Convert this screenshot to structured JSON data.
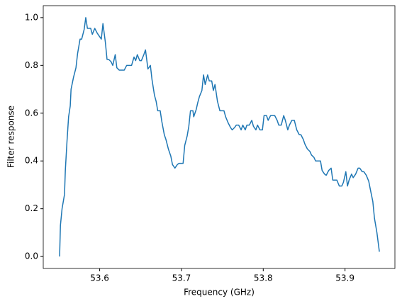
{
  "chart_data": {
    "type": "line",
    "xlabel": "Frequency (GHz)",
    "ylabel": "Filter response",
    "xlim": [
      53.531,
      53.961
    ],
    "ylim": [
      -0.05,
      1.05
    ],
    "xticks": [
      53.6,
      53.7,
      53.8,
      53.9
    ],
    "yticks": [
      {
        "value": 0,
        "label": "0.0"
      },
      0.2,
      0.4,
      0.6,
      0.8,
      {
        "value": 1,
        "label": "1.0"
      }
    ],
    "grid": false,
    "series": [
      {
        "color": "#1f77b4",
        "x": [
          53.551,
          53.552,
          53.554,
          53.557,
          53.558,
          53.56,
          53.562,
          53.564,
          53.565,
          53.568,
          53.571,
          53.573,
          53.576,
          53.578,
          53.581,
          53.583,
          53.585,
          53.589,
          53.591,
          53.594,
          53.597,
          53.599,
          53.602,
          53.604,
          53.607,
          53.609,
          53.611,
          53.614,
          53.616,
          53.619,
          53.621,
          53.624,
          53.627,
          53.63,
          53.633,
          53.636,
          53.639,
          53.642,
          53.644,
          53.646,
          53.649,
          53.651,
          53.654,
          53.656,
          53.659,
          53.662,
          53.664,
          53.667,
          53.669,
          53.671,
          53.674,
          53.676,
          53.679,
          53.681,
          53.684,
          53.687,
          53.689,
          53.692,
          53.695,
          53.697,
          53.7,
          53.702,
          53.704,
          53.707,
          53.709,
          53.711,
          53.714,
          53.715,
          53.718,
          53.72,
          53.722,
          53.725,
          53.727,
          53.729,
          53.732,
          53.734,
          53.737,
          53.739,
          53.741,
          53.744,
          53.747,
          53.749,
          53.752,
          53.754,
          53.757,
          53.76,
          53.762,
          53.765,
          53.767,
          53.77,
          53.773,
          53.775,
          53.778,
          53.78,
          53.783,
          53.786,
          53.788,
          53.791,
          53.793,
          53.796,
          53.799,
          53.801,
          53.804,
          53.806,
          53.809,
          53.812,
          53.814,
          53.817,
          53.819,
          53.822,
          53.825,
          53.827,
          53.83,
          53.832,
          53.835,
          53.838,
          53.841,
          53.844,
          53.846,
          53.849,
          53.851,
          53.854,
          53.857,
          53.859,
          53.862,
          53.864,
          53.867,
          53.87,
          53.872,
          53.875,
          53.877,
          53.88,
          53.883,
          53.885,
          53.888,
          53.89,
          53.893,
          53.896,
          53.898,
          53.901,
          53.903,
          53.905,
          53.908,
          53.91,
          53.913,
          53.916,
          53.918,
          53.921,
          53.923,
          53.926,
          53.929,
          53.931,
          53.934,
          53.936,
          53.939,
          53.942
        ],
        "values": [
          0.0,
          0.13,
          0.2,
          0.26,
          0.36,
          0.48,
          0.585,
          0.63,
          0.7,
          0.75,
          0.79,
          0.85,
          0.91,
          0.91,
          0.95,
          1.0,
          0.955,
          0.955,
          0.93,
          0.955,
          0.935,
          0.925,
          0.91,
          0.975,
          0.895,
          0.825,
          0.825,
          0.815,
          0.8,
          0.845,
          0.79,
          0.78,
          0.78,
          0.78,
          0.8,
          0.8,
          0.8,
          0.835,
          0.82,
          0.845,
          0.82,
          0.82,
          0.845,
          0.865,
          0.785,
          0.8,
          0.74,
          0.675,
          0.65,
          0.61,
          0.61,
          0.565,
          0.51,
          0.49,
          0.45,
          0.42,
          0.385,
          0.37,
          0.385,
          0.39,
          0.39,
          0.39,
          0.465,
          0.505,
          0.545,
          0.61,
          0.61,
          0.585,
          0.615,
          0.645,
          0.67,
          0.695,
          0.76,
          0.72,
          0.76,
          0.735,
          0.735,
          0.695,
          0.72,
          0.65,
          0.61,
          0.61,
          0.61,
          0.585,
          0.56,
          0.54,
          0.53,
          0.54,
          0.55,
          0.55,
          0.53,
          0.55,
          0.53,
          0.55,
          0.55,
          0.57,
          0.545,
          0.53,
          0.55,
          0.53,
          0.53,
          0.59,
          0.59,
          0.57,
          0.59,
          0.59,
          0.59,
          0.57,
          0.55,
          0.55,
          0.59,
          0.57,
          0.53,
          0.55,
          0.57,
          0.57,
          0.53,
          0.51,
          0.51,
          0.49,
          0.47,
          0.45,
          0.44,
          0.425,
          0.415,
          0.4,
          0.4,
          0.4,
          0.36,
          0.345,
          0.34,
          0.36,
          0.37,
          0.32,
          0.32,
          0.32,
          0.295,
          0.295,
          0.31,
          0.355,
          0.295,
          0.32,
          0.345,
          0.33,
          0.345,
          0.37,
          0.37,
          0.355,
          0.355,
          0.34,
          0.315,
          0.28,
          0.23,
          0.16,
          0.1,
          0.02
        ]
      }
    ]
  }
}
